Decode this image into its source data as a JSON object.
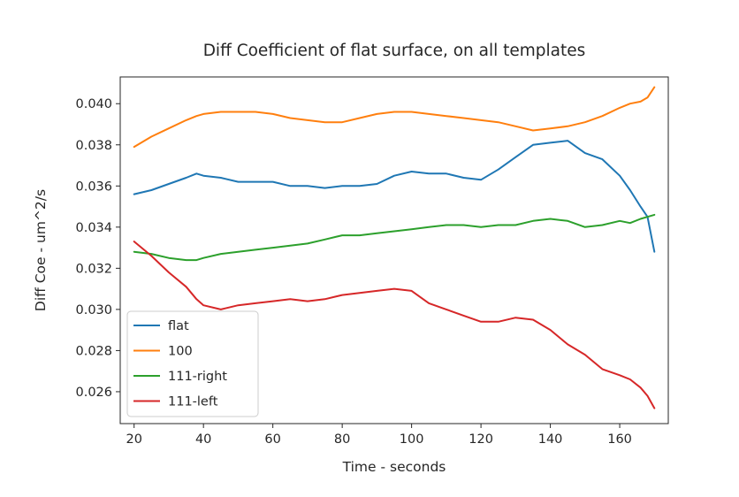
{
  "chart_data": {
    "type": "line",
    "title": "Diff Coefficient of flat surface, on all templates",
    "xlabel": "Time - seconds",
    "ylabel": "Diff Coe - um^2/s",
    "xlim": [
      16,
      174
    ],
    "ylim": [
      0.02445,
      0.0413
    ],
    "xticks": [
      20,
      40,
      60,
      80,
      100,
      120,
      140,
      160
    ],
    "yticks": [
      0.026,
      0.028,
      0.03,
      0.032,
      0.034,
      0.036,
      0.038,
      0.04
    ],
    "ytick_labels": [
      "0.026",
      "0.028",
      "0.030",
      "0.032",
      "0.034",
      "0.036",
      "0.038",
      "0.040"
    ],
    "grid": false,
    "legend": "lower-left",
    "x": [
      20,
      25,
      30,
      35,
      38,
      40,
      45,
      50,
      55,
      60,
      65,
      70,
      75,
      80,
      85,
      90,
      95,
      100,
      105,
      110,
      115,
      120,
      125,
      130,
      135,
      140,
      145,
      150,
      155,
      160,
      163,
      166,
      168,
      170
    ],
    "series": [
      {
        "name": "flat",
        "color": "#1f77b4",
        "values": [
          0.0356,
          0.0358,
          0.0361,
          0.0364,
          0.0366,
          0.0365,
          0.0364,
          0.0362,
          0.0362,
          0.0362,
          0.036,
          0.036,
          0.0359,
          0.036,
          0.036,
          0.0361,
          0.0365,
          0.0367,
          0.0366,
          0.0366,
          0.0364,
          0.0363,
          0.0368,
          0.0374,
          0.038,
          0.0381,
          0.0382,
          0.0376,
          0.0373,
          0.0365,
          0.0358,
          0.035,
          0.0345,
          0.0328
        ]
      },
      {
        "name": "100",
        "color": "#ff7f0e",
        "values": [
          0.0379,
          0.0384,
          0.0388,
          0.0392,
          0.0394,
          0.0395,
          0.0396,
          0.0396,
          0.0396,
          0.0395,
          0.0393,
          0.0392,
          0.0391,
          0.0391,
          0.0393,
          0.0395,
          0.0396,
          0.0396,
          0.0395,
          0.0394,
          0.0393,
          0.0392,
          0.0391,
          0.0389,
          0.0387,
          0.0388,
          0.0389,
          0.0391,
          0.0394,
          0.0398,
          0.04,
          0.0401,
          0.0403,
          0.0408
        ]
      },
      {
        "name": "111-right",
        "color": "#2ca02c",
        "values": [
          0.0328,
          0.0327,
          0.0325,
          0.0324,
          0.0324,
          0.0325,
          0.0327,
          0.0328,
          0.0329,
          0.033,
          0.0331,
          0.0332,
          0.0334,
          0.0336,
          0.0336,
          0.0337,
          0.0338,
          0.0339,
          0.034,
          0.0341,
          0.0341,
          0.034,
          0.0341,
          0.0341,
          0.0343,
          0.0344,
          0.0343,
          0.034,
          0.0341,
          0.0343,
          0.0342,
          0.0344,
          0.0345,
          0.0346
        ]
      },
      {
        "name": "111-left",
        "color": "#d62728",
        "values": [
          0.0333,
          0.0326,
          0.0318,
          0.0311,
          0.0305,
          0.0302,
          0.03,
          0.0302,
          0.0303,
          0.0304,
          0.0305,
          0.0304,
          0.0305,
          0.0307,
          0.0308,
          0.0309,
          0.031,
          0.0309,
          0.0303,
          0.03,
          0.0297,
          0.0294,
          0.0294,
          0.0296,
          0.0295,
          0.029,
          0.0283,
          0.0278,
          0.0271,
          0.0268,
          0.0266,
          0.0262,
          0.0258,
          0.0252
        ]
      }
    ]
  }
}
